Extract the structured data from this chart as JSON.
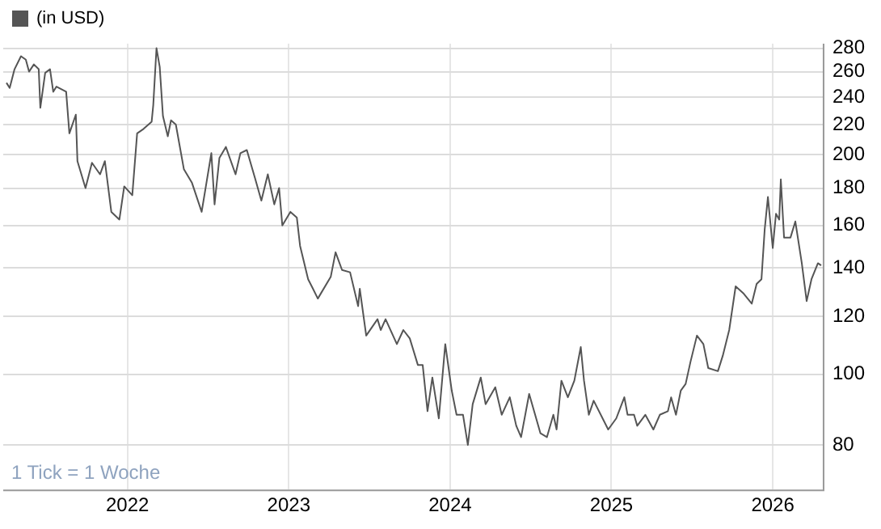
{
  "chart_data": {
    "type": "line",
    "log": true,
    "grid": true,
    "legend": "top left",
    "marker": "none",
    "annotations": [
      "1 Tick = 1 Woche"
    ],
    "xlim": [
      2021.23,
      2026.31
    ],
    "xticks": [
      2022,
      2023,
      2024,
      2025,
      2026
    ],
    "ylim": [
      69.5,
      284
    ],
    "yticks": [
      80,
      100,
      120,
      140,
      160,
      180,
      200,
      220,
      240,
      260,
      280
    ],
    "x": [
      2021.25,
      2021.27,
      2021.3,
      2021.34,
      2021.37,
      2021.39,
      2021.42,
      2021.45,
      2021.46,
      2021.49,
      2021.52,
      2021.54,
      2021.56,
      2021.62,
      2021.64,
      2021.68,
      2021.69,
      2021.74,
      2021.78,
      2021.83,
      2021.86,
      2021.9,
      2021.95,
      2021.98,
      2022.03,
      2022.06,
      2022.1,
      2022.15,
      2022.16,
      2022.18,
      2022.2,
      2022.22,
      2022.25,
      2022.27,
      2022.3,
      2022.35,
      2022.4,
      2022.46,
      2022.52,
      2022.54,
      2022.57,
      2022.61,
      2022.67,
      2022.7,
      2022.74,
      2022.79,
      2022.83,
      2022.87,
      2022.91,
      2022.94,
      2022.96,
      2023.01,
      2023.05,
      2023.07,
      2023.12,
      2023.15,
      2023.18,
      2023.26,
      2023.29,
      2023.33,
      2023.38,
      2023.43,
      2023.44,
      2023.48,
      2023.55,
      2023.57,
      2023.6,
      2023.67,
      2023.71,
      2023.75,
      2023.8,
      2023.83,
      2023.86,
      2023.89,
      2023.93,
      2023.97,
      2024.01,
      2024.04,
      2024.08,
      2024.11,
      2024.14,
      2024.19,
      2024.22,
      2024.28,
      2024.32,
      2024.37,
      2024.41,
      2024.44,
      2024.49,
      2024.56,
      2024.6,
      2024.64,
      2024.66,
      2024.69,
      2024.73,
      2024.77,
      2024.81,
      2024.83,
      2024.86,
      2024.89,
      2024.98,
      2025.03,
      2025.08,
      2025.1,
      2025.14,
      2025.16,
      2025.21,
      2025.26,
      2025.3,
      2025.35,
      2025.37,
      2025.4,
      2025.43,
      2025.46,
      2025.49,
      2025.53,
      2025.57,
      2025.6,
      2025.66,
      2025.69,
      2025.73,
      2025.77,
      2025.82,
      2025.87,
      2025.9,
      2025.93,
      2025.95,
      2025.97,
      2026.0,
      2026.02,
      2026.04,
      2026.05,
      2026.07,
      2026.11,
      2026.14,
      2026.18,
      2026.21,
      2026.24,
      2026.28,
      2026.3
    ],
    "series": [
      {
        "name": "(in USD)",
        "color": "#555555",
        "values": [
          251,
          247,
          262,
          273,
          270,
          260,
          266,
          262,
          232,
          259,
          262,
          244,
          248,
          244,
          214,
          227,
          196,
          180,
          195,
          188,
          196,
          167,
          163,
          181,
          176,
          214,
          217,
          222,
          234,
          280,
          264,
          226,
          212,
          223,
          220,
          191,
          183,
          167,
          201,
          171,
          198,
          205,
          188,
          201,
          203,
          186,
          173,
          188,
          171,
          180,
          160,
          167,
          164,
          150,
          135,
          131,
          127,
          136,
          147,
          139,
          138,
          124,
          131,
          113,
          119,
          115,
          119,
          110,
          115,
          112,
          103,
          103,
          89,
          99,
          87,
          110,
          95,
          88,
          88,
          80,
          91,
          99,
          91,
          96,
          88,
          93,
          85,
          82,
          94,
          83,
          82,
          88,
          84,
          98,
          93,
          98,
          109,
          98,
          88,
          92,
          84,
          87,
          93,
          88,
          88,
          85,
          88,
          84,
          88,
          89,
          93,
          88,
          95,
          97,
          104,
          113,
          110,
          102,
          101,
          106,
          115,
          132,
          129,
          125,
          133,
          135,
          158,
          175,
          149,
          166,
          163,
          185,
          154,
          154,
          162,
          142,
          126,
          135,
          142,
          141
        ]
      }
    ]
  }
}
